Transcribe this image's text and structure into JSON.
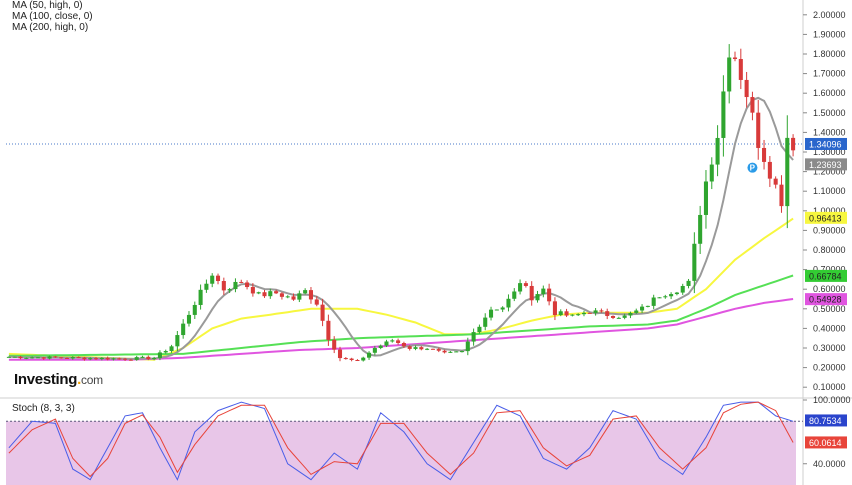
{
  "legend": {
    "ma50": "MA (50, high, 0)",
    "ma100": "MA (100, close, 0)",
    "ma200": "MA (200, high, 0)"
  },
  "stoch_label": "Stoch (8, 3, 3)",
  "logo": {
    "name": "Investing",
    "suffix": "com"
  },
  "colors": {
    "up": "#2fa52f",
    "down": "#d83a3a",
    "ma_gray": "#9a9a9a",
    "ma_yellow": "#f7f73f",
    "ma_green": "#55e055",
    "ma_magenta": "#e055e0",
    "stoch_bg": "#e8c6e8",
    "stoch_k": "#4a5ee8",
    "stoch_d": "#e8443a",
    "price_line": "#4a78c8"
  },
  "chart_data": [
    {
      "type": "candlestick",
      "ylim": [
        0.05,
        2.05
      ],
      "y_ticks": [
        "2.00000",
        "1.90000",
        "1.80000",
        "1.70000",
        "1.60000",
        "1.50000",
        "1.40000",
        "1.30000",
        "1.20000",
        "1.10000",
        "1.00000",
        "0.90000",
        "0.80000",
        "0.70000",
        "0.60000",
        "0.50000",
        "0.40000",
        "0.30000",
        "0.20000",
        "0.10000"
      ],
      "price_labels": [
        {
          "text": "1.34096",
          "value": 1.34096,
          "bg": "#2a66cc",
          "fg": "#ffffff"
        },
        {
          "text": "1.23693",
          "value": 1.23693,
          "bg": "#8a8a8a",
          "fg": "#ffffff"
        },
        {
          "text": "0.96413",
          "value": 0.96413,
          "bg": "#f7f73f",
          "fg": "#222222"
        },
        {
          "text": "0.66784",
          "value": 0.66784,
          "bg": "#33cc33",
          "fg": "#222222"
        },
        {
          "text": "0.54928",
          "value": 0.54928,
          "bg": "#e055e0",
          "fg": "#222222"
        }
      ],
      "current_price": 1.34096,
      "candle_count": 136,
      "close_path": [
        [
          0,
          0.255
        ],
        [
          20,
          0.245
        ],
        [
          25,
          0.25
        ],
        [
          28,
          0.31
        ],
        [
          32,
          0.53
        ],
        [
          35,
          0.68
        ],
        [
          37,
          0.6
        ],
        [
          40,
          0.64
        ],
        [
          43,
          0.57
        ],
        [
          46,
          0.58
        ],
        [
          49,
          0.55
        ],
        [
          51,
          0.59
        ],
        [
          53,
          0.53
        ],
        [
          55,
          0.35
        ],
        [
          57,
          0.25
        ],
        [
          60,
          0.23
        ],
        [
          63,
          0.3
        ],
        [
          66,
          0.34
        ],
        [
          69,
          0.3
        ],
        [
          72,
          0.3
        ],
        [
          75,
          0.27
        ],
        [
          78,
          0.28
        ],
        [
          80,
          0.38
        ],
        [
          83,
          0.5
        ],
        [
          85,
          0.51
        ],
        [
          87,
          0.58
        ],
        [
          88,
          0.64
        ],
        [
          90,
          0.56
        ],
        [
          92,
          0.6
        ],
        [
          94,
          0.48
        ],
        [
          97,
          0.46
        ],
        [
          100,
          0.49
        ],
        [
          103,
          0.47
        ],
        [
          106,
          0.46
        ],
        [
          109,
          0.5
        ],
        [
          112,
          0.57
        ],
        [
          115,
          0.6
        ],
        [
          117,
          0.63
        ],
        [
          119,
          1.0
        ],
        [
          120,
          1.15
        ],
        [
          122,
          1.39
        ],
        [
          124,
          1.83
        ],
        [
          125,
          1.79
        ],
        [
          127,
          1.6
        ],
        [
          129,
          1.35
        ],
        [
          131,
          1.2
        ],
        [
          133,
          1.05
        ],
        [
          134,
          1.38
        ],
        [
          135,
          1.34
        ]
      ],
      "series": [
        {
          "name": "MA (50, high, 0)",
          "path": [
            [
              0,
              0.27
            ],
            [
              25,
              0.24
            ],
            [
              30,
              0.3
            ],
            [
              35,
              0.4
            ],
            [
              40,
              0.45
            ],
            [
              45,
              0.47
            ],
            [
              52,
              0.5
            ],
            [
              60,
              0.5
            ],
            [
              65,
              0.47
            ],
            [
              70,
              0.43
            ],
            [
              75,
              0.37
            ],
            [
              80,
              0.37
            ],
            [
              85,
              0.4
            ],
            [
              90,
              0.44
            ],
            [
              95,
              0.47
            ],
            [
              100,
              0.48
            ],
            [
              110,
              0.48
            ],
            [
              115,
              0.5
            ],
            [
              120,
              0.6
            ],
            [
              125,
              0.75
            ],
            [
              130,
              0.86
            ],
            [
              135,
              0.96
            ]
          ]
        },
        {
          "name": "MA (100, close, 0)",
          "path": [
            [
              0,
              0.26
            ],
            [
              30,
              0.27
            ],
            [
              40,
              0.3
            ],
            [
              50,
              0.33
            ],
            [
              60,
              0.35
            ],
            [
              70,
              0.36
            ],
            [
              80,
              0.37
            ],
            [
              90,
              0.39
            ],
            [
              100,
              0.41
            ],
            [
              110,
              0.42
            ],
            [
              115,
              0.44
            ],
            [
              120,
              0.5
            ],
            [
              125,
              0.57
            ],
            [
              130,
              0.62
            ],
            [
              135,
              0.67
            ]
          ]
        },
        {
          "name": "MA (200, high, 0)",
          "path": [
            [
              0,
              0.24
            ],
            [
              20,
              0.24
            ],
            [
              30,
              0.25
            ],
            [
              40,
              0.27
            ],
            [
              50,
              0.29
            ],
            [
              60,
              0.3
            ],
            [
              70,
              0.32
            ],
            [
              80,
              0.34
            ],
            [
              90,
              0.36
            ],
            [
              100,
              0.38
            ],
            [
              110,
              0.4
            ],
            [
              115,
              0.42
            ],
            [
              120,
              0.46
            ],
            [
              125,
              0.5
            ],
            [
              130,
              0.53
            ],
            [
              135,
              0.55
            ]
          ]
        }
      ]
    },
    {
      "type": "line",
      "title": "Stoch (8, 3, 3)",
      "ylim": [
        20,
        100
      ],
      "y_ticks": [
        "100.0000",
        "40.0000"
      ],
      "series": [
        {
          "name": "%K",
          "path": [
            [
              0,
              55
            ],
            [
              4,
              80
            ],
            [
              8,
              78
            ],
            [
              11,
              35
            ],
            [
              14,
              25
            ],
            [
              17,
              55
            ],
            [
              20,
              85
            ],
            [
              23,
              88
            ],
            [
              26,
              55
            ],
            [
              29,
              25
            ],
            [
              32,
              70
            ],
            [
              36,
              90
            ],
            [
              40,
              98
            ],
            [
              44,
              92
            ],
            [
              48,
              40
            ],
            [
              52,
              25
            ],
            [
              56,
              50
            ],
            [
              60,
              35
            ],
            [
              64,
              88
            ],
            [
              68,
              70
            ],
            [
              72,
              40
            ],
            [
              76,
              25
            ],
            [
              80,
              60
            ],
            [
              84,
              95
            ],
            [
              88,
              85
            ],
            [
              92,
              45
            ],
            [
              96,
              35
            ],
            [
              100,
              55
            ],
            [
              104,
              90
            ],
            [
              108,
              82
            ],
            [
              112,
              45
            ],
            [
              116,
              30
            ],
            [
              120,
              65
            ],
            [
              123,
              95
            ],
            [
              126,
              98
            ],
            [
              129,
              98
            ],
            [
              132,
              85
            ],
            [
              135,
              80
            ]
          ]
        },
        {
          "name": "%D",
          "path": [
            [
              0,
              50
            ],
            [
              4,
              72
            ],
            [
              8,
              82
            ],
            [
              11,
              45
            ],
            [
              14,
              28
            ],
            [
              17,
              45
            ],
            [
              20,
              78
            ],
            [
              23,
              86
            ],
            [
              26,
              65
            ],
            [
              29,
              32
            ],
            [
              32,
              58
            ],
            [
              36,
              85
            ],
            [
              40,
              95
            ],
            [
              44,
              95
            ],
            [
              48,
              55
            ],
            [
              52,
              30
            ],
            [
              56,
              42
            ],
            [
              60,
              40
            ],
            [
              64,
              78
            ],
            [
              68,
              78
            ],
            [
              72,
              50
            ],
            [
              76,
              30
            ],
            [
              80,
              50
            ],
            [
              84,
              88
            ],
            [
              88,
              90
            ],
            [
              92,
              55
            ],
            [
              96,
              38
            ],
            [
              100,
              48
            ],
            [
              104,
              82
            ],
            [
              108,
              85
            ],
            [
              112,
              55
            ],
            [
              116,
              35
            ],
            [
              120,
              55
            ],
            [
              123,
              88
            ],
            [
              126,
              96
            ],
            [
              129,
              98
            ],
            [
              132,
              90
            ],
            [
              135,
              60
            ]
          ]
        }
      ],
      "value_labels": [
        {
          "text": "80.7534",
          "value": 80.7534,
          "bg": "#2a44cc",
          "fg": "#ffffff"
        },
        {
          "text": "60.0614",
          "value": 60.0614,
          "bg": "#e8443a",
          "fg": "#ffffff"
        }
      ]
    }
  ]
}
